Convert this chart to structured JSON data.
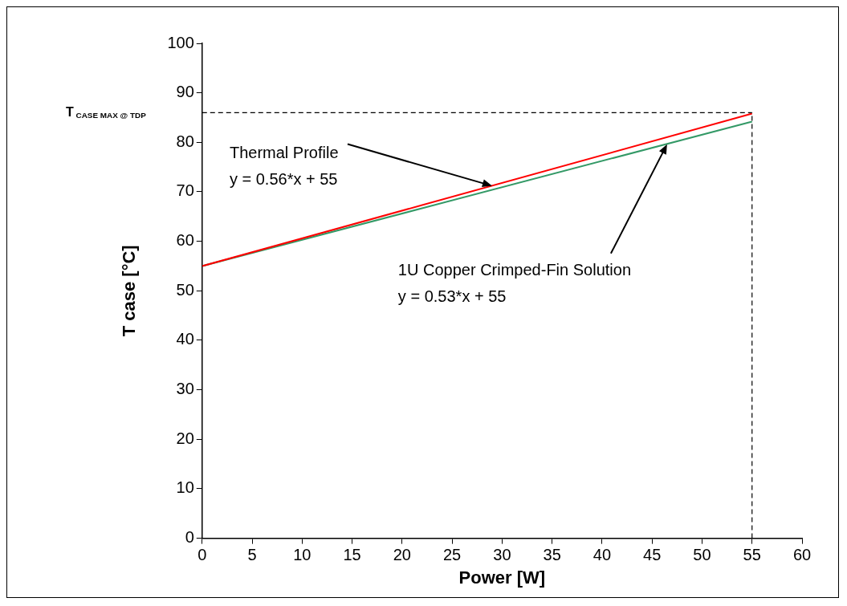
{
  "chart_data": {
    "type": "line",
    "xlabel": "Power [W]",
    "ylabel": "T case [°C]",
    "series": [
      {
        "color": "#ff0000",
        "values": [
          55,
          85.8
        ]
      },
      {
        "color": "#339966",
        "values": [
          55,
          84.2
        ]
      }
    ],
    "x": [
      0,
      55
    ],
    "xlim": [
      0,
      60
    ],
    "xticks": [
      0,
      5,
      10,
      15,
      20,
      25,
      30,
      35,
      40,
      45,
      50,
      55,
      60
    ],
    "ylim": [
      0,
      100
    ],
    "yticks": [
      0,
      10,
      20,
      30,
      40,
      50,
      60,
      70,
      80,
      90,
      100
    ],
    "grid": false,
    "legend": false,
    "marker": "none",
    "line_style": "solid",
    "ref_lines": [
      {
        "axis": "y",
        "value": 86,
        "label": "T$_{CASE MAX @ TDP}$",
        "line_style": "dashed",
        "color": "#000000"
      },
      {
        "axis": "x",
        "value": 55,
        "line_style": "dashed",
        "color": "#000000"
      }
    ],
    "annotations": [
      {
        "text": "Thermal Profile\ny = 0.56*x + 55",
        "x": 29,
        "y": 71.2
      },
      {
        "text": "1U Copper Crimped-Fin Solution\ny = 0.53*x + 55",
        "x": 46.5,
        "y": 79.6
      }
    ]
  }
}
